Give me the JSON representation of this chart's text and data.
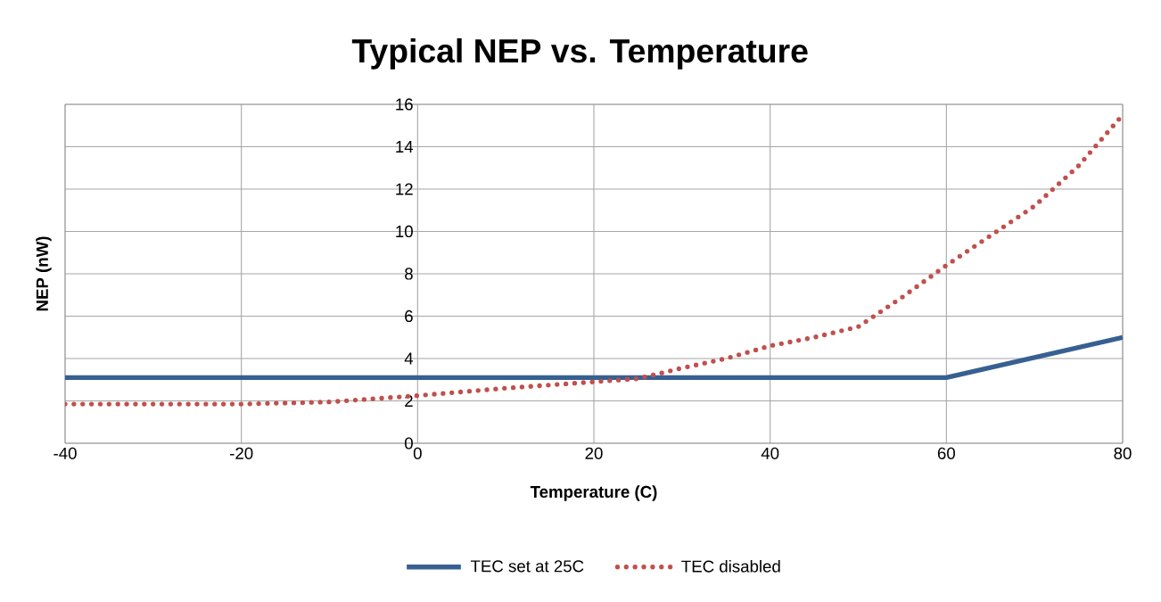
{
  "chart_data": {
    "type": "line",
    "title": "Typical NEP vs. Temperature",
    "xlabel": "Temperature (C)",
    "ylabel": "NEP (nW)",
    "xlim": [
      -40,
      80
    ],
    "xticks": [
      -40,
      -20,
      0,
      20,
      40,
      60,
      80
    ],
    "ylim": [
      0,
      16
    ],
    "yticks": [
      0,
      2,
      4,
      6,
      8,
      10,
      12,
      14,
      16
    ],
    "grid": true,
    "legend": "bottom",
    "marker": "none",
    "series": [
      {
        "name": "TEC set at 25C",
        "color": "#376092",
        "line_style": "solid",
        "x": [
          -40,
          60,
          80
        ],
        "values": [
          3.1,
          3.1,
          5.0
        ]
      },
      {
        "name": "TEC disabled",
        "color": "#c0504d",
        "line_style": "dotted",
        "x": [
          -40,
          -20,
          -10,
          0,
          10,
          20,
          25,
          30,
          35,
          40,
          45,
          50,
          55,
          60,
          65,
          70,
          75,
          80
        ],
        "values": [
          1.85,
          1.85,
          1.95,
          2.25,
          2.6,
          2.9,
          3.05,
          3.55,
          4.0,
          4.6,
          5.0,
          5.5,
          6.9,
          8.4,
          9.8,
          11.2,
          13.1,
          15.5
        ]
      }
    ]
  }
}
